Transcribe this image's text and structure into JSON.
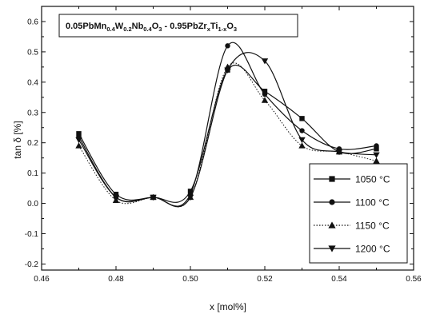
{
  "chart_data": {
    "type": "line",
    "title_parts": [
      {
        "t": "0.05PbMn",
        "sub": false
      },
      {
        "t": "0.4",
        "sub": true
      },
      {
        "t": "W",
        "sub": false
      },
      {
        "t": "0.2",
        "sub": true
      },
      {
        "t": "Nb",
        "sub": false
      },
      {
        "t": "0.4",
        "sub": true
      },
      {
        "t": "O",
        "sub": false
      },
      {
        "t": "3",
        "sub": true
      },
      {
        "t": " - 0.95PbZr",
        "sub": false
      },
      {
        "t": "x",
        "sub": true
      },
      {
        "t": "Ti",
        "sub": false
      },
      {
        "t": "1-x",
        "sub": true
      },
      {
        "t": "O",
        "sub": false
      },
      {
        "t": "3",
        "sub": true
      }
    ],
    "xlabel": "x [mol%]",
    "ylabel": "tan δ  [%]",
    "xlim": [
      0.46,
      0.56
    ],
    "ylim": [
      -0.22,
      0.65
    ],
    "x_ticks": [
      "0.46",
      "0.48",
      "0.50",
      "0.52",
      "0.54",
      "0.56"
    ],
    "y_ticks": [
      "-0.2",
      "-0.1",
      "0.0",
      "0.1",
      "0.2",
      "0.3",
      "0.4",
      "0.5",
      "0.6"
    ],
    "legend_position": "bottom-right",
    "series": [
      {
        "name": "1050 °C",
        "marker": "square",
        "line": "solid",
        "x": [
          0.47,
          0.48,
          0.49,
          0.5,
          0.51,
          0.52,
          0.53,
          0.54,
          0.55
        ],
        "y": [
          0.23,
          0.03,
          0.02,
          0.04,
          0.44,
          0.37,
          0.28,
          0.17,
          0.18
        ]
      },
      {
        "name": "1100 °C",
        "marker": "circle",
        "line": "solid",
        "x": [
          0.47,
          0.48,
          0.49,
          0.5,
          0.51,
          0.52,
          0.53,
          0.54,
          0.55
        ],
        "y": [
          0.22,
          0.02,
          0.02,
          0.03,
          0.52,
          0.36,
          0.24,
          0.18,
          0.19
        ]
      },
      {
        "name": "1150 °C",
        "marker": "triangle-up",
        "line": "dotted",
        "x": [
          0.47,
          0.48,
          0.49,
          0.5,
          0.51,
          0.52,
          0.53,
          0.54,
          0.55
        ],
        "y": [
          0.19,
          0.01,
          0.02,
          0.02,
          0.45,
          0.34,
          0.19,
          0.17,
          0.14
        ]
      },
      {
        "name": "1200 °C",
        "marker": "triangle-down",
        "line": "solid",
        "x": [
          0.47,
          0.48,
          0.49,
          0.5,
          0.51,
          0.52,
          0.53,
          0.54,
          0.55
        ],
        "y": [
          0.21,
          0.02,
          0.02,
          0.02,
          0.44,
          0.47,
          0.21,
          0.17,
          0.16
        ]
      }
    ]
  }
}
